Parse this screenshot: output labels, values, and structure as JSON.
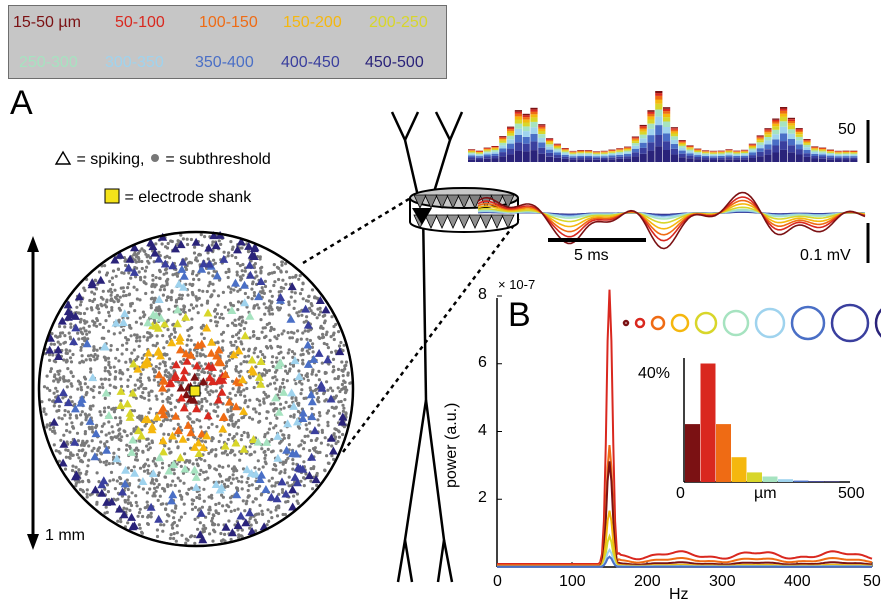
{
  "legend": {
    "items": [
      {
        "label": "15-50 µm",
        "color": "#7b1113"
      },
      {
        "label": "50-100",
        "color": "#d9281f"
      },
      {
        "label": "100-150",
        "color": "#ef6b14"
      },
      {
        "label": "150-200",
        "color": "#f5b70e"
      },
      {
        "label": "200-250",
        "color": "#d8d62a"
      },
      {
        "label": "250-300",
        "color": "#a6e3c0"
      },
      {
        "label": "300-350",
        "color": "#9fd3ee"
      },
      {
        "label": "350-400",
        "color": "#4a6fc6"
      },
      {
        "label": "400-450",
        "color": "#3a3f9e"
      },
      {
        "label": "450-500",
        "color": "#2a237a"
      }
    ]
  },
  "panel_a": {
    "label": "A",
    "spiking_key": "= spiking,",
    "subthreshold_key": "= subthreshold",
    "shank_key": "= electrode shank",
    "scale_1mm": "1 mm",
    "hist_scale": "50",
    "time_scale": "5 ms",
    "voltage_scale": "0.1 mV"
  },
  "panel_b": {
    "label": "B",
    "inset_ylabel": "40%",
    "inset_xlabel": "µm",
    "inset_x_ticks": [
      "0",
      "500"
    ]
  },
  "chart_data": [
    {
      "type": "line",
      "xlabel": "Hz",
      "ylabel": "power (a.u.)",
      "y_multiplier": "× 10-7",
      "x_ticks": [
        "0",
        "100",
        "200",
        "300",
        "400",
        "50"
      ],
      "y_ticks": [
        "2",
        "4",
        "6",
        "8"
      ],
      "xlim": [
        0,
        500
      ],
      "ylim": [
        0,
        8
      ],
      "series": [
        {
          "color": "#d9281f",
          "peak_hz": 150,
          "peak": 8.1
        },
        {
          "color": "#ef6b14",
          "peak_hz": 150,
          "peak": 3.55
        },
        {
          "color": "#7b1113",
          "peak_hz": 150,
          "peak": 3.1
        },
        {
          "color": "#f5b70e",
          "peak_hz": 150,
          "peak": 1.65
        },
        {
          "color": "#d8d62a",
          "peak_hz": 150,
          "peak": 0.9
        },
        {
          "color": "#9fd3ee",
          "peak_hz": 150,
          "peak": 0.5
        },
        {
          "color": "#4a6fc6",
          "peak_hz": 150,
          "peak": 0.3
        }
      ]
    },
    {
      "type": "bar",
      "categories": [
        "15-50",
        "50-100",
        "100-150",
        "150-200",
        "200-250",
        "250-300",
        "300-350",
        "350-400",
        "400-450",
        "450-500"
      ],
      "values": [
        21,
        43,
        21,
        9,
        3.5,
        2,
        1,
        0.5,
        0.3,
        0.2
      ],
      "colors": [
        "#7b1113",
        "#d9281f",
        "#ef6b14",
        "#f5b70e",
        "#d8d62a",
        "#a6e3c0",
        "#9fd3ee",
        "#4a6fc6",
        "#3a3f9e",
        "#2a237a"
      ]
    }
  ]
}
